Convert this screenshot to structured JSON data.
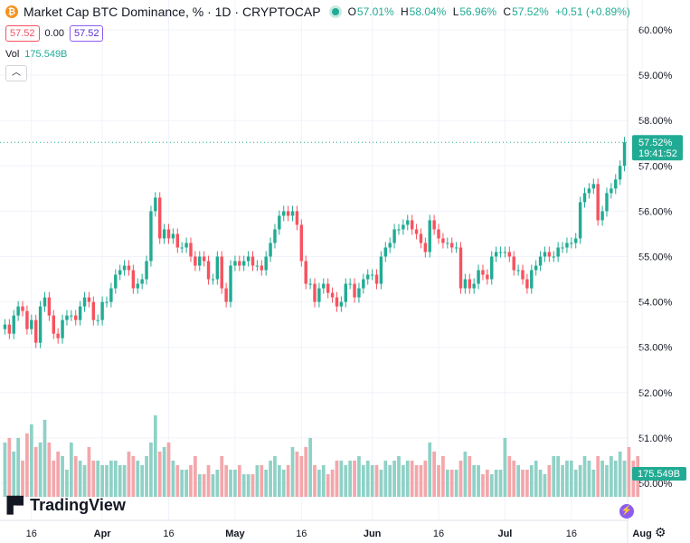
{
  "header": {
    "coin_icon": "bitcoin-icon",
    "title": "Market Cap BTC Dominance, % · 1D · CRYPTOCAP",
    "ohlc": {
      "o_label": "O",
      "o_value": "57.01%",
      "h_label": "H",
      "h_value": "58.04%",
      "l_label": "L",
      "l_value": "56.96%",
      "c_label": "C",
      "c_value": "57.52%",
      "change": "+0.51 (+0.89%)"
    },
    "price_box": "57.52",
    "spread": "0.00",
    "price_box2": "57.52",
    "vol_label": "Vol",
    "vol_value": "175.549B",
    "collapse_icon": "chevron-up-icon"
  },
  "logo": {
    "text": "TradingView",
    "mark": "17"
  },
  "colors": {
    "up": "#22ab94",
    "down": "#f7525f",
    "up_vol": "#8fd1c6",
    "down_vol": "#f3a7ab",
    "grid": "#f0f3fa",
    "axis_text": "#131722"
  },
  "chart_data": {
    "type": "candlestick",
    "ylim": [
      49.7,
      60.4
    ],
    "yticks": [
      "60.00%",
      "59.00%",
      "58.00%",
      "57.00%",
      "56.00%",
      "55.00%",
      "54.00%",
      "53.00%",
      "52.00%",
      "51.00%",
      "50.00%"
    ],
    "ytick_values": [
      60,
      59,
      58,
      57,
      56,
      55,
      54,
      53,
      52,
      51,
      50
    ],
    "xticks": [
      {
        "label": "16",
        "index": 6
      },
      {
        "label": "Apr",
        "index": 22
      },
      {
        "label": "16",
        "index": 37
      },
      {
        "label": "May",
        "index": 52
      },
      {
        "label": "16",
        "index": 67
      },
      {
        "label": "Jun",
        "index": 83
      },
      {
        "label": "16",
        "index": 98
      },
      {
        "label": "Jul",
        "index": 113
      },
      {
        "label": "16",
        "index": 128
      },
      {
        "label": "Aug",
        "index": 144
      }
    ],
    "last_price": "57.52%",
    "last_value": 57.52,
    "countdown": "19:41:52",
    "last_volume": "175.549B",
    "closes": [
      53.5,
      53.3,
      53.7,
      53.9,
      53.8,
      53.4,
      53.6,
      53.1,
      53.9,
      54.1,
      53.7,
      53.3,
      53.2,
      53.6,
      53.7,
      53.7,
      53.6,
      53.9,
      54.1,
      54.0,
      53.6,
      53.6,
      54.0,
      54.0,
      54.3,
      54.6,
      54.7,
      54.8,
      54.7,
      54.3,
      54.4,
      54.5,
      54.9,
      56.0,
      56.3,
      55.4,
      55.6,
      55.4,
      55.5,
      55.2,
      55.2,
      55.3,
      55.0,
      54.8,
      55.0,
      54.9,
      54.5,
      54.5,
      55.0,
      54.3,
      54.0,
      54.8,
      54.9,
      54.8,
      54.9,
      55.0,
      54.8,
      54.8,
      54.7,
      55.0,
      55.3,
      55.6,
      55.9,
      56.0,
      55.9,
      56.0,
      55.7,
      54.9,
      54.4,
      54.4,
      54.0,
      54.3,
      54.4,
      54.2,
      54.1,
      53.9,
      54.0,
      54.4,
      54.4,
      54.1,
      54.3,
      54.5,
      54.6,
      54.6,
      54.4,
      55.0,
      55.2,
      55.3,
      55.6,
      55.6,
      55.7,
      55.8,
      55.6,
      55.5,
      55.3,
      55.1,
      55.8,
      55.6,
      55.4,
      55.3,
      55.3,
      55.2,
      55.2,
      54.3,
      54.5,
      54.3,
      54.4,
      54.7,
      54.6,
      54.5,
      55.0,
      55.1,
      55.1,
      55.1,
      55.0,
      54.7,
      54.7,
      54.5,
      54.3,
      54.7,
      54.8,
      55.0,
      55.1,
      55.0,
      55.0,
      55.2,
      55.2,
      55.3,
      55.3,
      55.4,
      56.2,
      56.4,
      56.5,
      56.6,
      55.8,
      56.0,
      56.4,
      56.5,
      56.7,
      57.0,
      57.52
    ],
    "volumes": [
      50.9,
      51.0,
      50.7,
      51.0,
      50.5,
      51.1,
      51.3,
      50.8,
      50.9,
      51.4,
      50.9,
      50.5,
      50.7,
      50.6,
      50.3,
      50.9,
      50.6,
      50.5,
      50.4,
      50.8,
      50.5,
      50.5,
      50.4,
      50.4,
      50.5,
      50.5,
      50.4,
      50.4,
      50.7,
      50.6,
      50.5,
      50.4,
      50.6,
      50.9,
      51.5,
      50.7,
      50.8,
      50.9,
      50.5,
      50.4,
      50.3,
      50.3,
      50.4,
      50.6,
      50.2,
      50.2,
      50.4,
      50.2,
      50.3,
      50.6,
      50.4,
      50.3,
      50.3,
      50.4,
      50.2,
      50.2,
      50.2,
      50.4,
      50.4,
      50.3,
      50.5,
      50.6,
      50.4,
      50.3,
      50.4,
      50.8,
      50.7,
      50.6,
      50.8,
      51.0,
      50.4,
      50.3,
      50.4,
      50.2,
      50.3,
      50.5,
      50.5,
      50.4,
      50.5,
      50.5,
      50.6,
      50.4,
      50.5,
      50.4,
      50.4,
      50.3,
      50.5,
      50.4,
      50.5,
      50.6,
      50.4,
      50.5,
      50.5,
      50.4,
      50.4,
      50.5,
      50.9,
      50.7,
      50.4,
      50.6,
      50.3,
      50.3,
      50.3,
      50.5,
      50.7,
      50.6,
      50.4,
      50.4,
      50.2,
      50.3,
      50.2,
      50.3,
      50.3,
      51.0,
      50.6,
      50.5,
      50.4,
      50.3,
      50.3,
      50.4,
      50.5,
      50.3,
      50.2,
      50.4,
      50.6,
      50.6,
      50.4,
      50.5,
      50.5,
      50.3,
      50.4,
      50.6,
      50.5,
      50.3,
      50.6,
      50.5,
      50.4,
      50.6,
      50.5,
      50.7,
      50.5,
      50.8,
      50.5,
      50.6
    ]
  }
}
